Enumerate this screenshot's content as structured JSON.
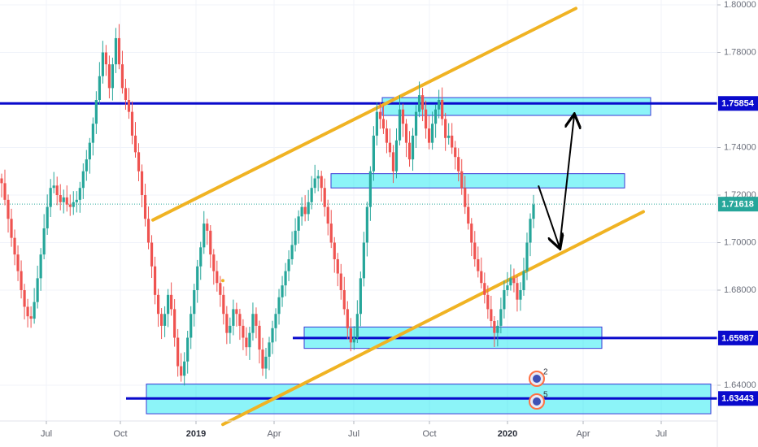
{
  "chart_data": {
    "type": "candlestick",
    "y_axis": {
      "ticks": [
        "1.80000",
        "1.78000",
        "1.74000",
        "1.72000",
        "1.70000",
        "1.68000",
        "1.64000"
      ],
      "range": [
        1.615,
        1.805
      ]
    },
    "x_axis": {
      "ticks": [
        {
          "label": "Jul",
          "bold": false
        },
        {
          "label": "Oct",
          "bold": false
        },
        {
          "label": "2019",
          "bold": true
        },
        {
          "label": "Apr",
          "bold": false
        },
        {
          "label": "Jul",
          "bold": false
        },
        {
          "label": "Oct",
          "bold": false
        },
        {
          "label": "2020",
          "bold": true
        },
        {
          "label": "Apr",
          "bold": false
        },
        {
          "label": "Jul",
          "bold": false
        }
      ]
    },
    "levels": [
      {
        "value": 1.75854,
        "label": "1.75854",
        "color": "#0a0acc"
      },
      {
        "value": 1.65987,
        "label": "1.65987",
        "color": "#0a0acc"
      },
      {
        "value": 1.63443,
        "label": "1.63443",
        "color": "#0a0acc"
      }
    ],
    "current_price": {
      "value": 1.71618,
      "label": "1.71618",
      "color": "#26a69a"
    },
    "zones": [
      {
        "y_top": 1.761,
        "y_bottom": 1.7535
      },
      {
        "y_top": 1.729,
        "y_bottom": 1.723
      },
      {
        "y_top": 1.6645,
        "y_bottom": 1.6555
      },
      {
        "y_top": 1.6405,
        "y_bottom": 1.628
      }
    ],
    "trendlines": [
      {
        "color": "#f0b323",
        "from_y": 1.7095,
        "to_y": 1.7985
      },
      {
        "color": "#f0b323",
        "from_y": 1.6235,
        "to_y": 1.713
      }
    ],
    "projection": [
      1.724,
      1.698,
      1.7535
    ],
    "events": [
      {
        "label": "2"
      },
      {
        "label": "5"
      }
    ],
    "price_series": [
      1.725,
      1.718,
      1.71,
      1.702,
      1.695,
      1.688,
      1.68,
      1.673,
      1.669,
      1.668,
      1.675,
      1.685,
      1.695,
      1.706,
      1.715,
      1.723,
      1.724,
      1.72,
      1.717,
      1.719,
      1.716,
      1.715,
      1.717,
      1.718,
      1.723,
      1.73,
      1.735,
      1.742,
      1.75,
      1.76,
      1.77,
      1.78,
      1.775,
      1.765,
      1.775,
      1.786,
      1.775,
      1.765,
      1.76,
      1.755,
      1.745,
      1.738,
      1.73,
      1.72,
      1.71,
      1.7,
      1.69,
      1.678,
      1.67,
      1.665,
      1.67,
      1.678,
      1.672,
      1.66,
      1.648,
      1.644,
      1.65,
      1.66,
      1.67,
      1.68,
      1.69,
      1.698,
      1.708,
      1.705,
      1.695,
      1.688,
      1.683,
      1.678,
      1.67,
      1.662,
      1.665,
      1.672,
      1.67,
      1.665,
      1.66,
      1.656,
      1.662,
      1.67,
      1.665,
      1.655,
      1.647,
      1.652,
      1.658,
      1.664,
      1.67,
      1.677,
      1.682,
      1.688,
      1.693,
      1.699,
      1.705,
      1.711,
      1.715,
      1.712,
      1.717,
      1.723,
      1.727,
      1.728,
      1.723,
      1.715,
      1.708,
      1.7,
      1.693,
      1.687,
      1.68,
      1.672,
      1.664,
      1.658,
      1.66,
      1.67,
      1.685,
      1.7,
      1.715,
      1.73,
      1.745,
      1.755,
      1.752,
      1.748,
      1.742,
      1.738,
      1.73,
      1.743,
      1.756,
      1.75,
      1.742,
      1.735,
      1.745,
      1.755,
      1.762,
      1.756,
      1.748,
      1.742,
      1.75,
      1.756,
      1.76,
      1.752,
      1.744,
      1.745,
      1.74,
      1.736,
      1.73,
      1.723,
      1.715,
      1.708,
      1.7,
      1.693,
      1.688,
      1.683,
      1.678,
      1.672,
      1.667,
      1.662,
      1.665,
      1.672,
      1.68,
      1.682,
      1.685,
      1.683,
      1.676,
      1.68,
      1.688,
      1.7,
      1.71,
      1.716
    ]
  }
}
